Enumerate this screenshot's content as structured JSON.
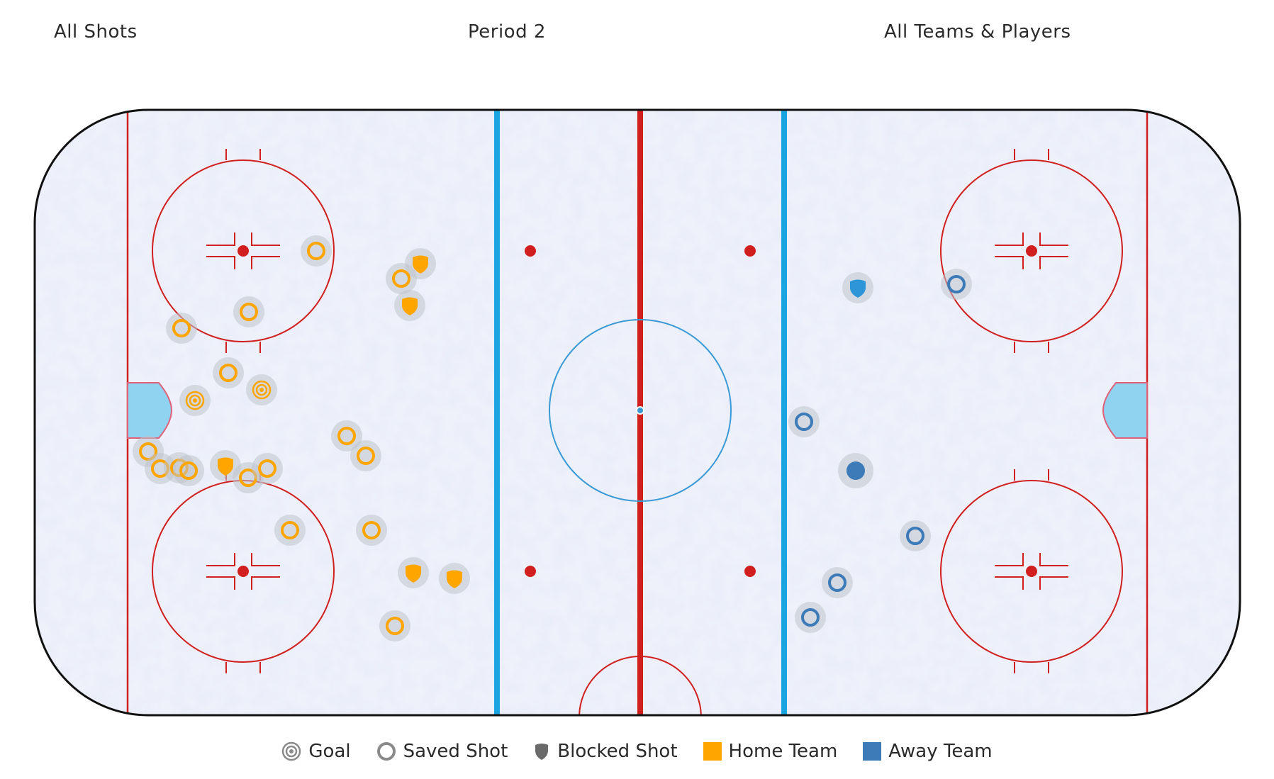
{
  "filters": {
    "shot_type": "All Shots",
    "period": "Period 2",
    "team": "All Teams & Players"
  },
  "colors": {
    "home": "#FFA500",
    "away": "#3D7AB8",
    "red_line": "#D11F1F",
    "blue_line": "#1BA5E0",
    "crease": "#8FD3F0",
    "marker_halo": "#BFC4CC"
  },
  "legend": {
    "goal": "Goal",
    "saved": "Saved Shot",
    "blocked": "Blocked Shot",
    "home": "Home Team",
    "away": "Away Team"
  }
}
